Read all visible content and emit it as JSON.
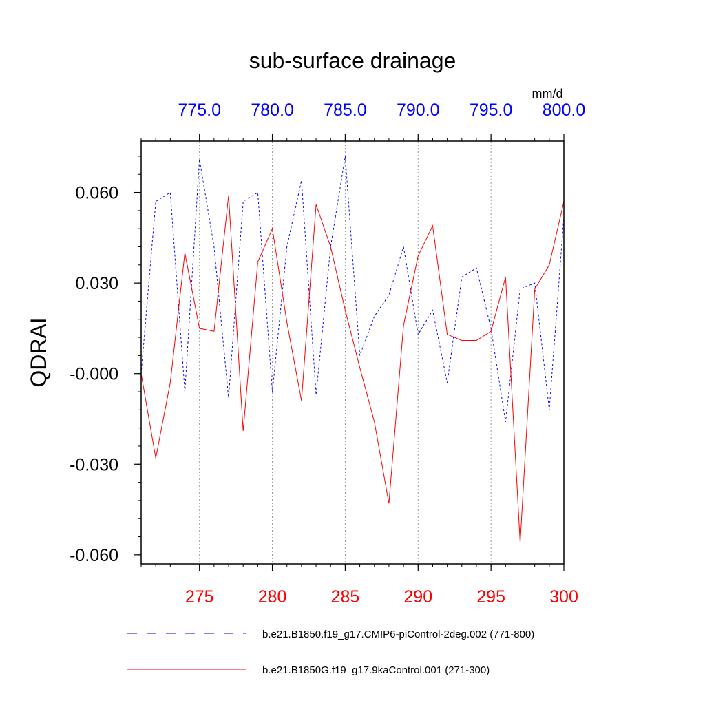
{
  "chart_data": {
    "type": "line",
    "title": "sub-surface drainage",
    "ylabel": "QDRAI",
    "units": "mm/d",
    "ylim": [
      -0.063,
      0.077
    ],
    "y_ticks": [
      "0.060",
      "0.030",
      "-0.000",
      "-0.030",
      "-0.060"
    ],
    "y_tick_values": [
      0.06,
      0.03,
      0.0,
      -0.03,
      -0.06
    ],
    "bottom_axis": {
      "range": [
        271,
        300
      ],
      "tick_values": [
        275,
        280,
        285,
        290,
        295,
        300
      ],
      "tick_labels": [
        "275",
        "280",
        "285",
        "290",
        "295",
        "300"
      ],
      "color": "#ff0000"
    },
    "top_axis": {
      "range": [
        771,
        800
      ],
      "tick_values": [
        775,
        780,
        785,
        790,
        795,
        800
      ],
      "tick_labels": [
        "775.0",
        "780.0",
        "785.0",
        "790.0",
        "795.0",
        "800.0"
      ],
      "color": "#0000ff"
    },
    "grid": "vertical dotted at major ticks",
    "legend_placement": "bottom",
    "series": [
      {
        "name": "b.e21.B1850.f19_g17.CMIP6-piControl-2deg.002 (771-800)",
        "axis": "top",
        "color": "#0000ff",
        "dash": "dashed",
        "x": [
          771,
          772,
          773,
          774,
          775,
          776,
          777,
          778,
          779,
          780,
          781,
          782,
          783,
          784,
          785,
          786,
          787,
          788,
          789,
          790,
          791,
          792,
          793,
          794,
          795,
          796,
          797,
          798,
          799,
          800
        ],
        "values": [
          0.0,
          0.057,
          0.06,
          -0.006,
          0.071,
          0.042,
          -0.008,
          0.057,
          0.06,
          -0.006,
          0.042,
          0.064,
          -0.007,
          0.042,
          0.072,
          0.006,
          0.019,
          0.026,
          0.042,
          0.013,
          0.021,
          -0.003,
          0.032,
          0.035,
          0.015,
          -0.016,
          0.028,
          0.03,
          -0.012,
          0.052
        ]
      },
      {
        "name": "b.e21.B1850G.f19_g17.9kaControl.001 (271-300)",
        "axis": "bottom",
        "color": "#ff0000",
        "dash": "solid",
        "x": [
          271,
          272,
          273,
          274,
          275,
          276,
          277,
          278,
          279,
          280,
          281,
          282,
          283,
          284,
          285,
          286,
          287,
          288,
          289,
          290,
          291,
          292,
          293,
          294,
          295,
          296,
          297,
          298,
          299,
          300
        ],
        "values": [
          0.0,
          -0.028,
          -0.003,
          0.04,
          0.015,
          0.014,
          0.059,
          -0.019,
          0.037,
          0.048,
          0.017,
          -0.009,
          0.056,
          0.042,
          0.021,
          0.002,
          -0.016,
          -0.043,
          0.016,
          0.039,
          0.049,
          0.013,
          0.011,
          0.011,
          0.014,
          0.032,
          -0.056,
          0.028,
          0.036,
          0.057
        ]
      }
    ]
  }
}
